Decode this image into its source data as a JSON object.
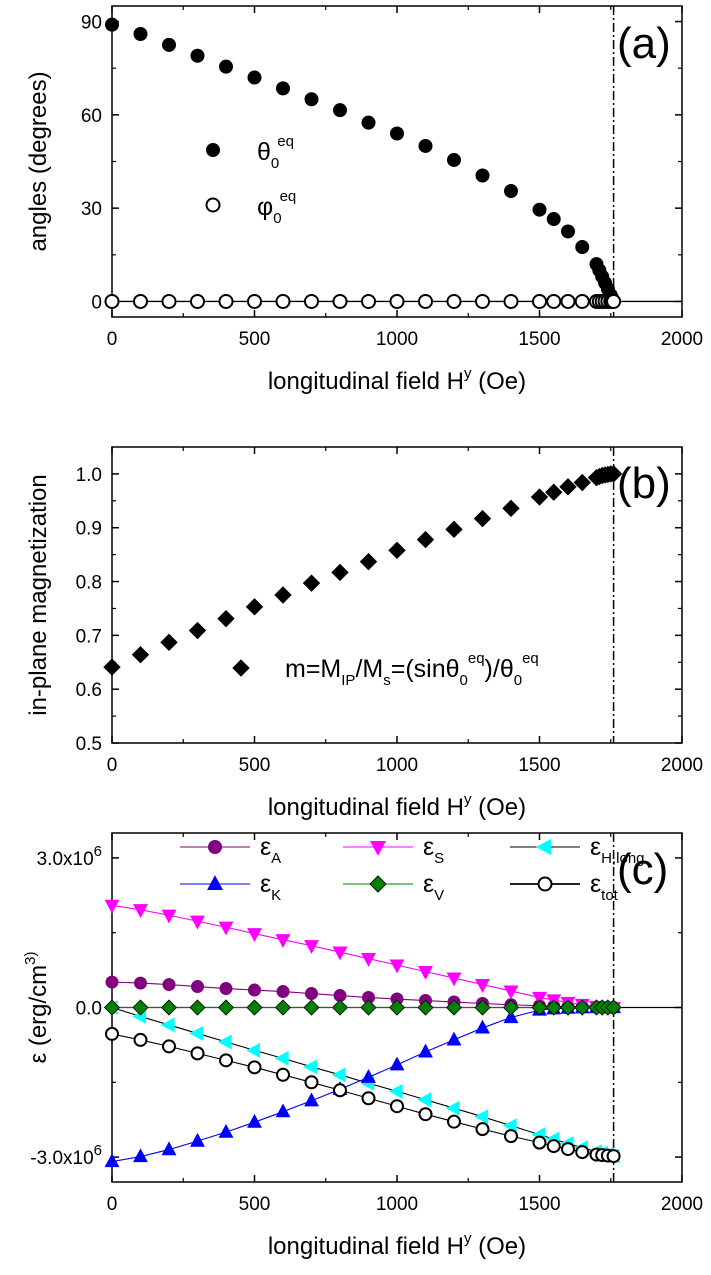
{
  "chart_data": [
    {
      "panel": "(a)",
      "type": "scatter",
      "xlabel": "longitudinal field H^y (Oe)",
      "ylabel": "angles (degrees)",
      "xlim": [
        0,
        2000
      ],
      "ylim": [
        -5,
        95
      ],
      "xticks": [
        "0",
        "500",
        "1000",
        "1500",
        "2000"
      ],
      "yticks": [
        "0",
        "30",
        "60",
        "90"
      ],
      "reference_lines": {
        "horizontal_y": 0,
        "vertical_x": 1760
      },
      "legend_placement": "center-left",
      "series": [
        {
          "name": "θ0eq",
          "legend": {
            "base": "θ",
            "sub": "0",
            "sup": "eq"
          },
          "marker": "filled-circle",
          "color": "#000000",
          "x": [
            0,
            100,
            200,
            300,
            400,
            500,
            600,
            700,
            800,
            900,
            1000,
            1100,
            1200,
            1300,
            1400,
            1500,
            1550,
            1600,
            1650,
            1700,
            1710,
            1720,
            1730,
            1740,
            1750,
            1755,
            1760
          ],
          "y": [
            89,
            86,
            82.5,
            79,
            75.5,
            72,
            68.5,
            65,
            61.5,
            57.5,
            54,
            50,
            45.5,
            40.5,
            35.5,
            29.5,
            26.5,
            22.5,
            17.5,
            12,
            10,
            8,
            6,
            4,
            2,
            1,
            0
          ]
        },
        {
          "name": "φ0eq",
          "legend": {
            "base": "φ",
            "sub": "0",
            "sup": "eq"
          },
          "marker": "open-circle",
          "color": "#000000",
          "x": [
            0,
            100,
            200,
            300,
            400,
            500,
            600,
            700,
            800,
            900,
            1000,
            1100,
            1200,
            1300,
            1400,
            1500,
            1550,
            1600,
            1650,
            1700,
            1710,
            1720,
            1730,
            1740,
            1750,
            1755,
            1760
          ],
          "y": [
            0,
            0,
            0,
            0,
            0,
            0,
            0,
            0,
            0,
            0,
            0,
            0,
            0,
            0,
            0,
            0,
            0,
            0,
            0,
            0,
            0,
            0,
            0,
            0,
            0,
            0,
            0
          ]
        }
      ]
    },
    {
      "panel": "(b)",
      "type": "scatter",
      "xlabel": "longitudinal field H^y (Oe)",
      "ylabel": "in-plane magnetization",
      "xlim": [
        0,
        2000
      ],
      "ylim": [
        0.5,
        1.05
      ],
      "xticks": [
        "0",
        "500",
        "1000",
        "1500",
        "2000"
      ],
      "yticks": [
        "0.5",
        "0.6",
        "0.7",
        "0.8",
        "0.9",
        "1.0"
      ],
      "reference_lines": {
        "vertical_x": 1760
      },
      "legend_placement": "bottom-center",
      "series": [
        {
          "name": "m=MIP/Ms=(sinθ0eq)/θ0eq",
          "legend_text": "m=M_IP/M_s=(sinθ_0^eq)/θ_0^eq",
          "marker": "filled-diamond",
          "color": "#000000",
          "x": [
            0,
            100,
            200,
            300,
            400,
            500,
            600,
            700,
            800,
            900,
            1000,
            1100,
            1200,
            1300,
            1400,
            1500,
            1550,
            1600,
            1650,
            1700,
            1710,
            1720,
            1730,
            1740,
            1750,
            1760
          ],
          "y": [
            0.641,
            0.664,
            0.687,
            0.709,
            0.731,
            0.753,
            0.775,
            0.797,
            0.817,
            0.837,
            0.858,
            0.878,
            0.897,
            0.917,
            0.936,
            0.957,
            0.966,
            0.976,
            0.984,
            0.993,
            0.995,
            0.997,
            0.998,
            0.999,
            1.0,
            1.0
          ]
        }
      ]
    },
    {
      "panel": "(c)",
      "type": "line",
      "xlabel": "longitudinal field H^y (Oe)",
      "ylabel": "ε (erg/cm^3)",
      "xlim": [
        0,
        2000
      ],
      "ylim": [
        -3500000.0,
        3500000.0
      ],
      "xticks": [
        "0",
        "500",
        "1000",
        "1500",
        "2000"
      ],
      "yticks": [
        "-3.0x10^6",
        "0.0",
        "3.0x10^6"
      ],
      "reference_lines": {
        "horizontal_y": 0,
        "vertical_x": 1760
      },
      "legend_placement": "top",
      "x": [
        0,
        100,
        200,
        300,
        400,
        500,
        600,
        700,
        800,
        900,
        1000,
        1100,
        1200,
        1300,
        1400,
        1500,
        1550,
        1600,
        1650,
        1700,
        1720,
        1740,
        1760
      ],
      "series": [
        {
          "name": "εA",
          "legend": {
            "base": "ε",
            "sub": "A"
          },
          "marker": "filled-circle",
          "color": "#800080",
          "line_color": "#800080",
          "values": [
            510000,
            490000,
            460000,
            420000,
            380000,
            350000,
            320000,
            280000,
            240000,
            200000,
            170000,
            140000,
            110000,
            80000,
            55000,
            35000,
            25000,
            17000,
            10000,
            5000,
            3000,
            1000,
            0
          ]
        },
        {
          "name": "εS",
          "legend": {
            "base": "ε",
            "sub": "S"
          },
          "marker": "filled-triangle-down",
          "color": "#ff00ff",
          "line_color": "#ff00ff",
          "values": [
            2050000,
            1960000,
            1850000,
            1730000,
            1610000,
            1480000,
            1360000,
            1240000,
            1110000,
            980000,
            850000,
            720000,
            590000,
            460000,
            330000,
            200000,
            150000,
            100000,
            60000,
            20000,
            10000,
            5000,
            0
          ]
        },
        {
          "name": "εH,long",
          "legend": {
            "base": "ε",
            "sub": "H,long"
          },
          "marker": "filled-triangle-left",
          "color": "#00ffff",
          "line_color": "#000000",
          "values": [
            0,
            -180000,
            -350000,
            -520000,
            -690000,
            -860000,
            -1020000,
            -1190000,
            -1350000,
            -1520000,
            -1680000,
            -1850000,
            -2020000,
            -2190000,
            -2370000,
            -2550000,
            -2640000,
            -2730000,
            -2810000,
            -2890000,
            -2920000,
            -2950000,
            -2980000
          ]
        },
        {
          "name": "εK",
          "legend": {
            "base": "ε",
            "sub": "K"
          },
          "marker": "filled-triangle-up",
          "color": "#0000ff",
          "line_color": "#0000ff",
          "values": [
            -3090000,
            -2990000,
            -2850000,
            -2680000,
            -2500000,
            -2300000,
            -2090000,
            -1870000,
            -1640000,
            -1400000,
            -1150000,
            -890000,
            -650000,
            -410000,
            -200000,
            -50000,
            -25000,
            -12000,
            -5000,
            -1000,
            0,
            0,
            0
          ]
        },
        {
          "name": "εV",
          "legend": {
            "base": "ε",
            "sub": "V"
          },
          "marker": "filled-diamond",
          "color": "#008000",
          "line_color": "#008000",
          "values": [
            0,
            0,
            0,
            0,
            0,
            0,
            0,
            0,
            0,
            0,
            0,
            0,
            0,
            0,
            0,
            0,
            0,
            0,
            0,
            0,
            0,
            0,
            0
          ]
        },
        {
          "name": "εtot",
          "legend": {
            "base": "ε",
            "sub": "tot"
          },
          "marker": "open-circle",
          "color": "#000000",
          "line_color": "#000000",
          "values": [
            -530000,
            -650000,
            -780000,
            -920000,
            -1060000,
            -1200000,
            -1350000,
            -1500000,
            -1660000,
            -1820000,
            -1980000,
            -2140000,
            -2290000,
            -2440000,
            -2580000,
            -2710000,
            -2780000,
            -2840000,
            -2900000,
            -2950000,
            -2960000,
            -2970000,
            -2980000
          ]
        }
      ]
    }
  ]
}
